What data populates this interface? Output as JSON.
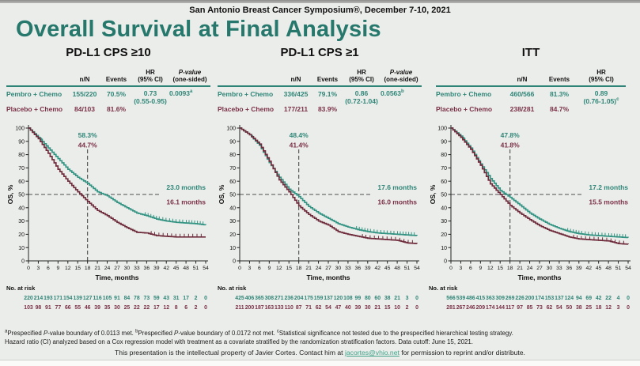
{
  "page": {
    "symposium": "San Antonio Breast Cancer Symposium®, December 7-10, 2021",
    "title": "Overall Survival at Final Analysis"
  },
  "colors": {
    "teal": "#2e8577",
    "maroon": "#7a3148",
    "curve_teal": "#349483",
    "curve_maroon": "#6f2c3c",
    "dash": "#4d4d4d",
    "axis": "#222222",
    "title_teal": "#26786c",
    "link": "#42a38b"
  },
  "tables": [
    {
      "headers": {
        "nN": "n/N",
        "events": "Events",
        "hr_line1": "HR",
        "hr_line2": "(95% CI)",
        "pv_line1": "P-value",
        "pv_line2": "(one-sided)"
      },
      "rows": [
        {
          "label": "Pembro + Chemo",
          "nN": "155/220",
          "events": "70.5%"
        },
        {
          "label": "Placebo + Chemo",
          "nN": "84/103",
          "events": "81.6%"
        }
      ],
      "hr": "0.73",
      "hr_ci": "(0.55-0.95)",
      "hr_ci_sup": "",
      "pvalue": "0.0093",
      "pvalue_sup": "a"
    },
    {
      "headers": {
        "nN": "n/N",
        "events": "Events",
        "hr_line1": "HR",
        "hr_line2": "(95% CI)",
        "pv_line1": "P-value",
        "pv_line2": "(one-sided)"
      },
      "rows": [
        {
          "label": "Pembro + Chemo",
          "nN": "336/425",
          "events": "79.1%"
        },
        {
          "label": "Placebo + Chemo",
          "nN": "177/211",
          "events": "83.9%"
        }
      ],
      "hr": "0.86",
      "hr_ci": "(0.72-1.04)",
      "hr_ci_sup": "",
      "pvalue": "0.0563",
      "pvalue_sup": "b"
    },
    {
      "headers": {
        "nN": "n/N",
        "events": "Events",
        "hr_line1": "HR",
        "hr_line2": "(95% CI)"
      },
      "rows": [
        {
          "label": "Pembro + Chemo",
          "nN": "460/566",
          "events": "81.3%"
        },
        {
          "label": "Placebo + Chemo",
          "nN": "238/281",
          "events": "84.7%"
        }
      ],
      "hr": "0.89",
      "hr_ci": "(0.76-1.05)",
      "hr_ci_sup": "c"
    }
  ],
  "chart_data": [
    {
      "type": "line",
      "title": "PD-L1 CPS ≥10",
      "xlabel": "Time, months",
      "ylabel": "OS, %",
      "xlim": [
        0,
        54
      ],
      "ylim": [
        0,
        100
      ],
      "xtick_step": 3,
      "ytick_step": 10,
      "x": [
        0,
        3,
        6,
        9,
        12,
        15,
        18,
        21,
        24,
        27,
        30,
        33,
        36,
        39,
        42,
        45,
        48,
        51,
        54
      ],
      "series": [
        {
          "name": "Pembro + Chemo",
          "color_key": "curve_teal",
          "text_color": "teal",
          "values": [
            100,
            93,
            85,
            77,
            69,
            63,
            58.3,
            52,
            49,
            44,
            40,
            36,
            34,
            31.5,
            30,
            29,
            28.5,
            28,
            27
          ],
          "rate_at_18mo": "58.3%",
          "median_label": "23.0 months",
          "at_risk": [
            220,
            214,
            193,
            171,
            154,
            139,
            127,
            116,
            105,
            91,
            84,
            78,
            73,
            59,
            43,
            31,
            17,
            2,
            0
          ]
        },
        {
          "name": "Placebo + Chemo",
          "color_key": "curve_maroon",
          "text_color": "maroon",
          "values": [
            100,
            92,
            81,
            69,
            60,
            52,
            44.7,
            38,
            34,
            29,
            25,
            21.5,
            21,
            19,
            18.5,
            18,
            18,
            18,
            18
          ],
          "rate_at_18mo": "44.7%",
          "median_label": "16.1 months",
          "at_risk": [
            103,
            98,
            91,
            77,
            66,
            55,
            46,
            39,
            35,
            30,
            25,
            22,
            22,
            17,
            12,
            8,
            6,
            2,
            0
          ]
        }
      ],
      "crosshair": {
        "x": 18,
        "y": 50
      },
      "at_risk_label": "No. at risk",
      "legend_position": "none",
      "grid": false
    },
    {
      "type": "line",
      "title": "PD-L1 CPS ≥1",
      "xlabel": "Time, months",
      "ylabel": "OS, %",
      "xlim": [
        0,
        54
      ],
      "ylim": [
        0,
        100
      ],
      "xtick_step": 3,
      "ytick_step": 10,
      "x": [
        0,
        3,
        6,
        9,
        12,
        15,
        18,
        21,
        24,
        27,
        30,
        33,
        36,
        39,
        42,
        45,
        48,
        51,
        54
      ],
      "series": [
        {
          "name": "Pembro + Chemo",
          "color_key": "curve_teal",
          "text_color": "teal",
          "values": [
            100,
            95,
            87,
            74,
            63,
            54,
            48.4,
            41,
            36,
            32,
            28,
            25.5,
            23.5,
            22,
            21,
            20.5,
            20,
            19.5,
            19
          ],
          "rate_at_18mo": "48.4%",
          "median_label": "17.6 months",
          "at_risk": [
            425,
            406,
            365,
            308,
            271,
            236,
            204,
            175,
            159,
            137,
            120,
            108,
            99,
            80,
            60,
            38,
            21,
            3,
            0
          ]
        },
        {
          "name": "Placebo + Chemo",
          "color_key": "curve_maroon",
          "text_color": "maroon",
          "values": [
            100,
            95,
            88,
            75,
            61,
            52,
            41.4,
            35,
            30,
            27,
            22,
            20,
            18.5,
            17,
            16.5,
            16,
            15.5,
            13.5,
            13
          ],
          "rate_at_18mo": "41.4%",
          "median_label": "16.0 months",
          "at_risk": [
            211,
            200,
            187,
            163,
            133,
            110,
            87,
            71,
            62,
            54,
            47,
            40,
            39,
            30,
            21,
            15,
            10,
            2,
            0
          ]
        }
      ],
      "crosshair": {
        "x": 18,
        "y": 50
      },
      "at_risk_label": "No. at risk",
      "legend_position": "none",
      "grid": false
    },
    {
      "type": "line",
      "title": "ITT",
      "xlabel": "Time, months",
      "ylabel": "OS, %",
      "xlim": [
        0,
        54
      ],
      "ylim": [
        0,
        100
      ],
      "xtick_step": 3,
      "ytick_step": 10,
      "x": [
        0,
        3,
        6,
        9,
        12,
        15,
        18,
        21,
        24,
        27,
        30,
        33,
        36,
        39,
        42,
        45,
        48,
        51,
        54
      ],
      "series": [
        {
          "name": "Pembro + Chemo",
          "color_key": "curve_teal",
          "text_color": "teal",
          "values": [
            100,
            94,
            85,
            73,
            62,
            53,
            47.8,
            42,
            36,
            31.5,
            27.5,
            24.5,
            22,
            20.5,
            19.5,
            19,
            18.5,
            18,
            17.5
          ],
          "rate_at_18mo": "47.8%",
          "median_label": "17.2 months",
          "at_risk": [
            566,
            539,
            486,
            415,
            363,
            309,
            269,
            226,
            200,
            174,
            153,
            137,
            124,
            94,
            69,
            42,
            22,
            4,
            0
          ]
        },
        {
          "name": "Placebo + Chemo",
          "color_key": "curve_maroon",
          "text_color": "maroon",
          "values": [
            100,
            93,
            84,
            72,
            58,
            50,
            41.8,
            36,
            31,
            26.5,
            23,
            20.5,
            18,
            16.5,
            16,
            15.5,
            15,
            13,
            12.5
          ],
          "rate_at_18mo": "41.8%",
          "median_label": "15.5 months",
          "at_risk": [
            281,
            267,
            246,
            209,
            174,
            144,
            117,
            97,
            85,
            73,
            62,
            54,
            50,
            38,
            25,
            18,
            12,
            3,
            0
          ]
        }
      ],
      "crosshair": {
        "x": 18,
        "y": 50
      },
      "at_risk_label": "No. at risk",
      "legend_position": "none",
      "grid": false
    }
  ],
  "footnotes": {
    "line1": [
      {
        "s": "a"
      },
      {
        "t": "Prespecified "
      },
      {
        "i": "P"
      },
      {
        "t": "-value boundary of 0.0113 met. "
      },
      {
        "s": "b"
      },
      {
        "t": "Prespecified "
      },
      {
        "i": "P"
      },
      {
        "t": "-value boundary of 0.0172 not met. "
      },
      {
        "s": "c"
      },
      {
        "t": "Statistical significance not tested due to the prespecified hierarchical testing strategy."
      }
    ],
    "line2": [
      {
        "t": "Hazard ratio (CI) analyzed based on a Cox regression model with treatment as a covariate stratified by the randomization stratification factors. Data cutoff: June 15, 2021."
      }
    ]
  },
  "footer": {
    "pre": "This presentation is the intellectual property of Javier Cortes. Contact him at ",
    "email": "jacortes@vhio.net",
    "post": " for permission to reprint and/or distribute."
  }
}
